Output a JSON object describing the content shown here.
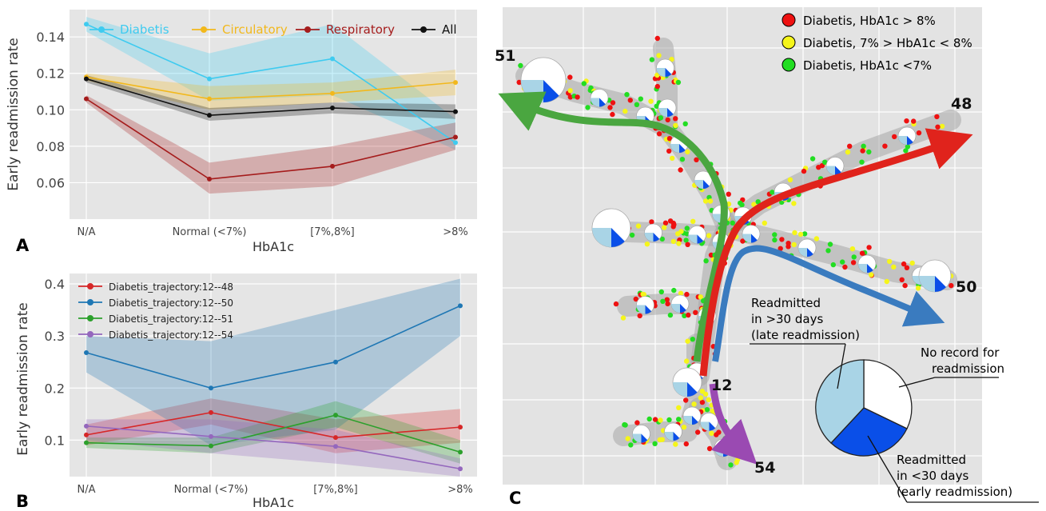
{
  "chart_data": [
    {
      "panel": "A",
      "type": "line",
      "categories": [
        "N/A",
        "Normal (<7%)",
        "[7%,8%]",
        ">8%"
      ],
      "xlabel": "HbA1c",
      "ylabel": "Early readmission rate",
      "ylim": [
        0.04,
        0.155
      ],
      "yticks": [
        "0.06",
        "0.08",
        "0.10",
        "0.12",
        "0.14"
      ],
      "grid": true,
      "legend": "top, horizontal",
      "series": [
        {
          "name": "Diabetis",
          "color": "#3ecbf0",
          "values": [
            0.147,
            0.117,
            0.128,
            0.082
          ],
          "lower": [
            0.143,
            0.105,
            0.108,
            0.078
          ],
          "upper": [
            0.151,
            0.131,
            0.147,
            0.095
          ]
        },
        {
          "name": "Circulatory",
          "color": "#f2b81c",
          "values": [
            0.118,
            0.106,
            0.109,
            0.115
          ],
          "lower": [
            0.116,
            0.1,
            0.104,
            0.108
          ],
          "upper": [
            0.12,
            0.113,
            0.115,
            0.122
          ]
        },
        {
          "name": "Respiratory",
          "color": "#a51c1c",
          "values": [
            0.106,
            0.062,
            0.069,
            0.085
          ],
          "lower": [
            0.104,
            0.054,
            0.058,
            0.078
          ],
          "upper": [
            0.108,
            0.071,
            0.08,
            0.093
          ]
        },
        {
          "name": "All",
          "color": "#111111",
          "values": [
            0.117,
            0.097,
            0.101,
            0.099
          ],
          "lower": [
            0.115,
            0.094,
            0.098,
            0.095
          ],
          "upper": [
            0.119,
            0.101,
            0.104,
            0.103
          ]
        }
      ]
    },
    {
      "panel": "B",
      "type": "line",
      "categories": [
        "N/A",
        "Normal (<7%)",
        "[7%,8%]",
        ">8%"
      ],
      "xlabel": "HbA1c",
      "ylabel": "Early readmission rate",
      "ylim": [
        0.03,
        0.42
      ],
      "yticks": [
        "0.1",
        "0.2",
        "0.3",
        "0.4"
      ],
      "grid": true,
      "legend": "top-left",
      "series": [
        {
          "name": "Diabetis_trajectory:12--48",
          "color": "#d62728",
          "values": [
            0.11,
            0.153,
            0.105,
            0.125
          ],
          "lower": [
            0.09,
            0.13,
            0.075,
            0.095
          ],
          "upper": [
            0.13,
            0.18,
            0.14,
            0.16
          ]
        },
        {
          "name": "Diabetis_trajectory:12--50",
          "color": "#1f77b4",
          "values": [
            0.268,
            0.2,
            0.25,
            0.358
          ],
          "lower": [
            0.23,
            0.09,
            0.12,
            0.3
          ],
          "upper": [
            0.3,
            0.29,
            0.35,
            0.41
          ]
        },
        {
          "name": "Diabetis_trajectory:12--51",
          "color": "#2ca02c",
          "values": [
            0.095,
            0.089,
            0.148,
            0.077
          ],
          "lower": [
            0.085,
            0.075,
            0.125,
            0.055
          ],
          "upper": [
            0.105,
            0.105,
            0.175,
            0.1
          ]
        },
        {
          "name": "Diabetis_trajectory:12--54",
          "color": "#9467bd",
          "values": [
            0.127,
            0.107,
            0.088,
            0.045
          ],
          "lower": [
            0.1,
            0.075,
            0.055,
            0.03
          ],
          "upper": [
            0.14,
            0.14,
            0.12,
            0.065
          ]
        }
      ]
    }
  ],
  "panel_labels": {
    "a": "A",
    "b": "B",
    "c": "C"
  },
  "panel_c": {
    "legend": [
      {
        "label": "Diabetis, HbA1c > 8%",
        "color": "#ee1111"
      },
      {
        "label": "Diabetis, 7% > HbA1c < 8%",
        "color": "#f5f51a"
      },
      {
        "label": "Diabetis, HbA1c <7%",
        "color": "#22dd22"
      }
    ],
    "node_labels": {
      "n51": "51",
      "n48": "48",
      "n50": "50",
      "n12": "12",
      "n54": "54"
    },
    "arrow_colors": {
      "green": "#4aa640",
      "red": "#e0231c",
      "blue": "#3a7bbf",
      "purple": "#9a4ab2"
    },
    "pie_annotations": {
      "late_1": "Readmitted",
      "late_2": "in >30 days",
      "late_3": "(late readmission)",
      "none_1": "No record for",
      "none_2": "readmission",
      "early_1": "Readmitted",
      "early_2": "in <30 days",
      "early_3": "(early readmission)"
    },
    "pie_colors": {
      "none": "#ffffff",
      "late": "#a9d4e6",
      "early": "#0a4fe8"
    }
  }
}
